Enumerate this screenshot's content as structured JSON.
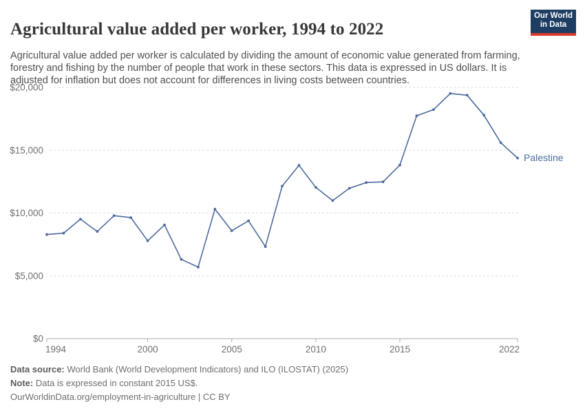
{
  "header": {
    "title": "Agricultural value added per worker, 1994 to 2022",
    "subtitle": "Agricultural value added per worker is calculated by dividing the amount of economic value generated from farming, forestry and fishing by the number of people that work in these sectors. This data is expressed in US dollars. It is adjusted for inflation but does not account for differences in living costs between countries.",
    "logo": {
      "line1": "Our World",
      "line2": "in Data",
      "bg_color": "#1d3d63",
      "stripe_color": "#d93a2b"
    }
  },
  "chart_data": {
    "type": "line",
    "title": "Agricultural value added per worker, 1994 to 2022",
    "xlabel": "",
    "ylabel": "",
    "xlim": [
      1994,
      2022
    ],
    "ylim": [
      0,
      20000
    ],
    "grid": "horizontal-dashed",
    "legend_position": "end-of-line-label",
    "x_ticks": [
      1994,
      2000,
      2005,
      2010,
      2015,
      2022
    ],
    "y_ticks": [
      0,
      5000,
      10000,
      15000,
      20000
    ],
    "y_tick_labels": [
      "$0",
      "$5,000",
      "$10,000",
      "$15,000",
      "$20,000"
    ],
    "x": [
      1994,
      1995,
      1996,
      1997,
      1998,
      1999,
      2000,
      2001,
      2002,
      2003,
      2004,
      2005,
      2006,
      2007,
      2008,
      2009,
      2010,
      2011,
      2012,
      2013,
      2014,
      2015,
      2016,
      2017,
      2018,
      2019,
      2020,
      2021,
      2022
    ],
    "series": [
      {
        "name": "Palestine",
        "color": "#4c6a9c",
        "values": [
          8290,
          8400,
          9510,
          8530,
          9790,
          9640,
          7790,
          9050,
          6310,
          5700,
          10310,
          8590,
          9380,
          7330,
          12140,
          13800,
          12040,
          10990,
          11970,
          12430,
          12480,
          13820,
          17740,
          18230,
          19520,
          19380,
          17790,
          15600,
          14380
        ]
      }
    ]
  },
  "chart_colors": {
    "gridline": "#dcdcdc",
    "axis": "#a9a9a9",
    "tick_label": "#6e6e6e"
  },
  "footer": {
    "data_source_label": "Data source:",
    "data_source_text": " World Bank (World Development Indicators) and ILO (ILOSTAT) (2025)",
    "note_label": "Note:",
    "note_text": " Data is expressed in constant 2015 US$.",
    "attribution": "OurWorldinData.org/employment-in-agriculture | CC BY"
  }
}
